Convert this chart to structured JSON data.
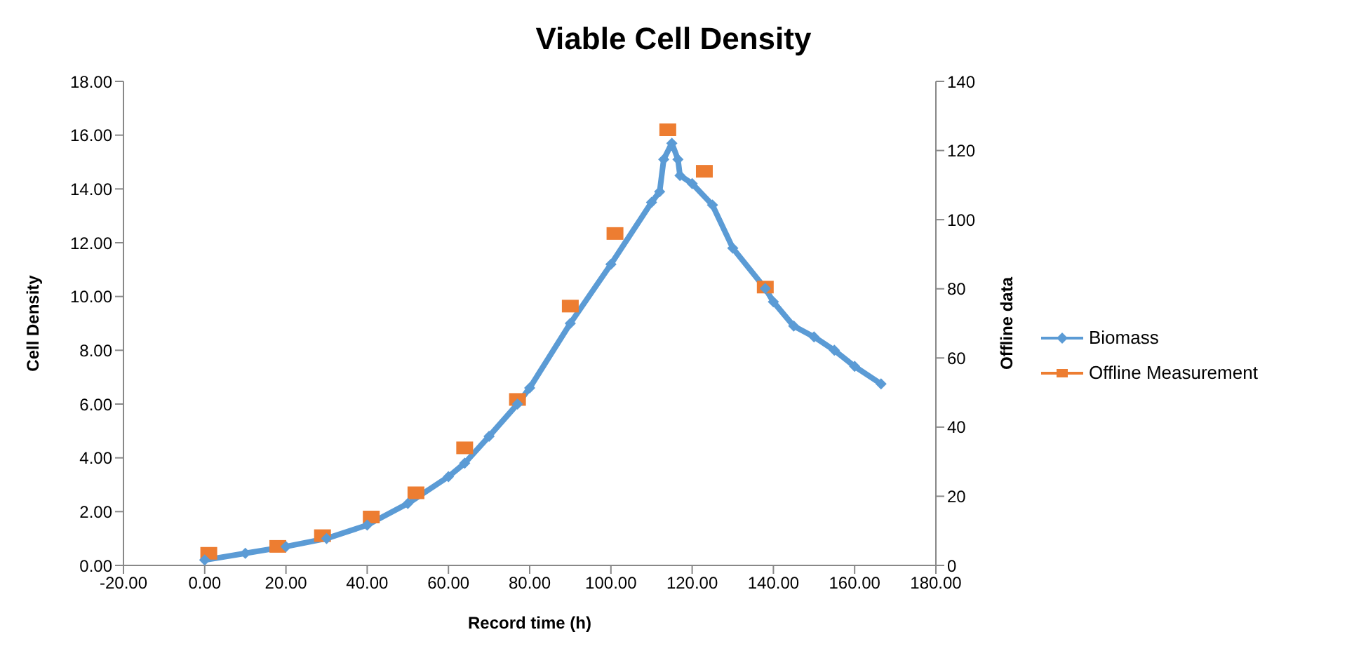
{
  "chart_data": {
    "type": "line",
    "title": "Viable Cell Density",
    "xlabel": "Record time (h)",
    "ylabel": "Cell Density",
    "y2label": "Offline data",
    "xlim": [
      -20,
      180
    ],
    "xticks": [
      {
        "value": -20,
        "label": "-20.00"
      },
      {
        "value": 0,
        "label": "0.00"
      },
      {
        "value": 20,
        "label": "20.00"
      },
      {
        "value": 40,
        "label": "40.00"
      },
      {
        "value": 60,
        "label": "60.00"
      },
      {
        "value": 80,
        "label": "80.00"
      },
      {
        "value": 100,
        "label": "100.00"
      },
      {
        "value": 120,
        "label": "120.00"
      },
      {
        "value": 140,
        "label": "140.00"
      },
      {
        "value": 160,
        "label": "160.00"
      },
      {
        "value": 180,
        "label": "180.00"
      }
    ],
    "ylim": [
      0,
      18
    ],
    "yticks": [
      {
        "value": 0,
        "label": "0.00"
      },
      {
        "value": 2,
        "label": "2.00"
      },
      {
        "value": 4,
        "label": "4.00"
      },
      {
        "value": 6,
        "label": "6.00"
      },
      {
        "value": 8,
        "label": "8.00"
      },
      {
        "value": 10,
        "label": "10.00"
      },
      {
        "value": 12,
        "label": "12.00"
      },
      {
        "value": 14,
        "label": "14.00"
      },
      {
        "value": 16,
        "label": "16.00"
      },
      {
        "value": 18,
        "label": "18.00"
      }
    ],
    "y2lim": [
      0,
      140
    ],
    "y2ticks": [
      0,
      20,
      40,
      60,
      80,
      100,
      120,
      140
    ],
    "legend": "right",
    "series": [
      {
        "name": "Biomass",
        "color": "#5b9bd5",
        "marker": "diamond",
        "x": [
          0,
          10,
          20,
          30,
          40,
          50,
          60,
          64,
          70,
          77,
          80,
          90,
          100,
          110,
          112,
          113,
          115,
          116.5,
          117,
          120,
          125,
          130,
          138,
          140,
          145,
          150,
          155,
          160,
          166.5
        ],
        "values": [
          0.2,
          0.45,
          0.7,
          1.0,
          1.5,
          2.3,
          3.3,
          3.8,
          4.8,
          6.0,
          6.6,
          9.0,
          11.2,
          13.5,
          13.9,
          15.1,
          15.7,
          15.1,
          14.5,
          14.2,
          13.4,
          11.8,
          10.3,
          9.8,
          8.9,
          8.5,
          8.0,
          7.4,
          6.75
        ]
      },
      {
        "name": "Offline Measurement",
        "type": "scatter",
        "axis": "y2",
        "color": "#ed7d31",
        "marker": "square",
        "x": [
          1,
          18,
          29,
          41,
          52,
          64,
          77,
          90,
          101,
          114,
          123,
          138
        ],
        "values": [
          3.5,
          5.5,
          8.6,
          14,
          21,
          34,
          48,
          75,
          96,
          126,
          114,
          80.5
        ]
      }
    ]
  }
}
